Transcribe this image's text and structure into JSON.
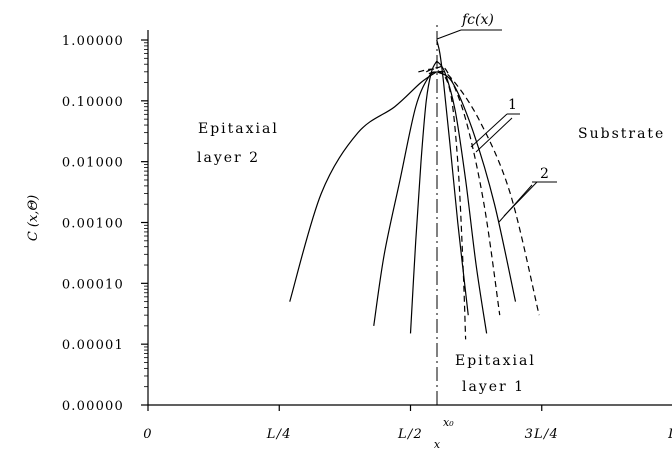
{
  "chart_data": {
    "type": "line",
    "title": "",
    "ylabel": "C (x,Θ)",
    "xlabel": "x",
    "y_scale": "log",
    "ylim": [
      1e-06,
      1
    ],
    "xlim": [
      0,
      1
    ],
    "y_ticks": [
      {
        "value": 1,
        "label": "1.00000"
      },
      {
        "value": 0.1,
        "label": "0.10000"
      },
      {
        "value": 0.01,
        "label": "0.01000"
      },
      {
        "value": 0.001,
        "label": "0.00100"
      },
      {
        "value": 0.0001,
        "label": "0.00010"
      },
      {
        "value": 1e-05,
        "label": "0.00001"
      },
      {
        "value": 1e-06,
        "label": "0.00000"
      }
    ],
    "x_ticks": [
      {
        "value": 0,
        "label": "0"
      },
      {
        "value": 0.25,
        "label": "L/4"
      },
      {
        "value": 0.5,
        "label": "L/2"
      },
      {
        "value": 0.75,
        "label": "3L/4"
      },
      {
        "value": 1,
        "label": "L"
      }
    ],
    "x0": {
      "value": 0.55,
      "label": "x₀"
    },
    "series": [
      {
        "style": "solid",
        "x": [
          0.55,
          0.556,
          0.563,
          0.575,
          0.59,
          0.61
        ],
        "y": [
          1.0,
          0.6,
          0.2,
          0.02,
          0.001,
          3e-05
        ]
      },
      {
        "style": "solid",
        "x": [
          0.55,
          0.54,
          0.53,
          0.52,
          0.51,
          0.5
        ],
        "y": [
          0.45,
          0.3,
          0.1,
          0.01,
          0.0005,
          1.5e-05
        ]
      },
      {
        "style": "solid",
        "x": [
          0.55,
          0.565,
          0.585,
          0.605,
          0.625,
          0.645
        ],
        "y": [
          0.45,
          0.3,
          0.07,
          0.005,
          0.0002,
          1.5e-05
        ]
      },
      {
        "style": "solid",
        "x": [
          0.55,
          0.535,
          0.51,
          0.48,
          0.45,
          0.43
        ],
        "y": [
          0.3,
          0.25,
          0.08,
          0.005,
          0.0003,
          2e-05
        ]
      },
      {
        "style": "solid",
        "x": [
          0.55,
          0.58,
          0.62,
          0.66,
          0.7
        ],
        "y": [
          0.3,
          0.2,
          0.03,
          0.002,
          5e-05
        ]
      },
      {
        "style": "solid",
        "x": [
          0.55,
          0.52,
          0.47,
          0.4,
          0.33,
          0.27
        ],
        "y": [
          0.3,
          0.2,
          0.08,
          0.03,
          0.003,
          5e-05
        ]
      },
      {
        "style": "dashed",
        "x": [
          0.53,
          0.55,
          0.57,
          0.605,
          0.64,
          0.67
        ],
        "y": [
          0.3,
          0.35,
          0.3,
          0.05,
          0.002,
          3e-05
        ]
      },
      {
        "style": "dashed",
        "x": [
          0.535,
          0.55,
          0.575,
          0.63,
          0.69,
          0.745
        ],
        "y": [
          0.28,
          0.3,
          0.25,
          0.05,
          0.003,
          3e-05
        ]
      },
      {
        "style": "dashed",
        "x": [
          0.515,
          0.55,
          0.575,
          0.59,
          0.6,
          0.605
        ],
        "y": [
          0.3,
          0.32,
          0.15,
          0.01,
          0.0002,
          1.2e-05
        ]
      }
    ]
  },
  "annotations": {
    "fc_label": "fc(x)",
    "label_1": "1",
    "label_2": "2",
    "epi2_line1": "Epitaxial",
    "epi2_line2": "layer 2",
    "substrate": "Substrate",
    "epi1_line1": "Epitaxial",
    "epi1_line2": "layer 1"
  }
}
